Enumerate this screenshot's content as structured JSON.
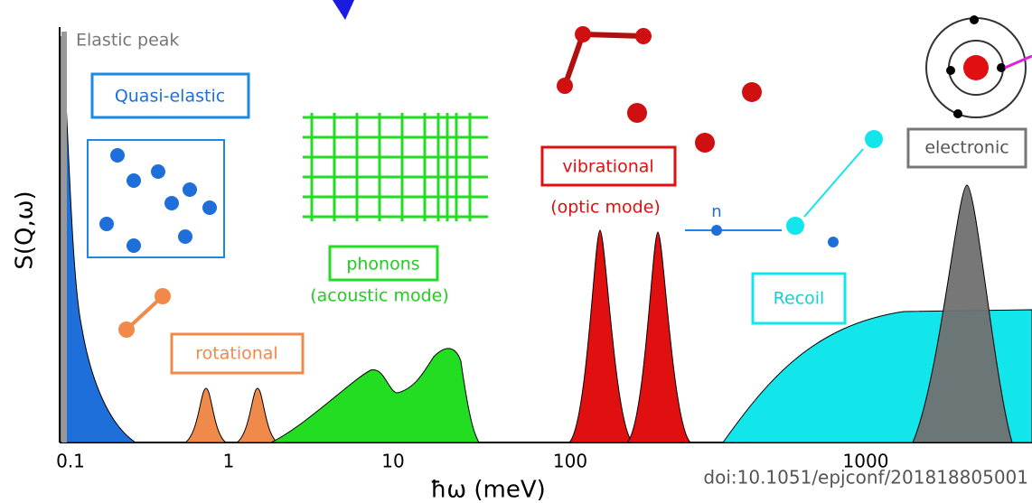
{
  "axes": {
    "y_label": "S(Q,ω)",
    "x_label": "ħω (meV)",
    "x_ticks": [
      "0.1",
      "1",
      "10",
      "100",
      "1000"
    ]
  },
  "labels": {
    "elastic": "Elastic peak",
    "quasi_elastic": "Quasi-elastic",
    "rotational": "rotational",
    "phonons": "phonons",
    "phonons_sub": "(acoustic mode)",
    "vibrational": "vibrational",
    "vibrational_sub": "(optic mode)",
    "recoil": "Recoil",
    "electronic": "electronic",
    "neutron": "n"
  },
  "doi": "doi:10.1051/epjconf/201818805001"
}
